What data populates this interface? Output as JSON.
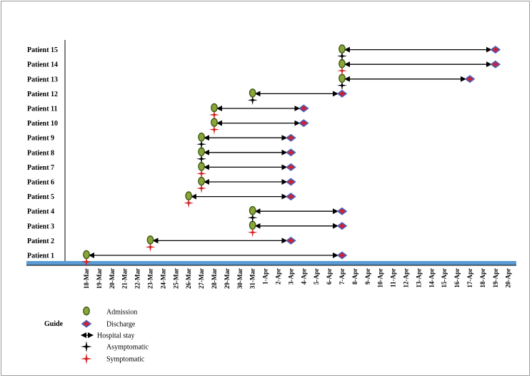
{
  "chart_data": {
    "type": "timeline",
    "title": "",
    "xlabel": "",
    "ylabel": "",
    "x_ticks": [
      "18-Mar",
      "19-Mar",
      "20-Mar",
      "21-Mar",
      "22-Mar",
      "23-Mar",
      "24-Mar",
      "25-Mar",
      "26-Mar",
      "27-Mar",
      "28-Mar",
      "29-Mar",
      "30-Mar",
      "31-Mar",
      "1-Apr",
      "2-Apr",
      "3-Apr",
      "4-Apr",
      "5-Apr",
      "6-Apr",
      "7-Apr",
      "8-Apr",
      "9-Apr",
      "10-Apr",
      "11-Apr",
      "12-Apr",
      "13-Apr",
      "14-Apr",
      "15-Apr",
      "16-Apr",
      "17-Apr",
      "18-Apr",
      "19-Apr",
      "20-Apr"
    ],
    "patients": [
      {
        "label": "Patient 1",
        "admission": "18-Mar",
        "discharge": "7-Apr",
        "status": "symptomatic"
      },
      {
        "label": "Patient 2",
        "admission": "23-Mar",
        "discharge": "3-Apr",
        "status": "symptomatic"
      },
      {
        "label": "Patient 3",
        "admission": "31-Mar",
        "discharge": "7-Apr",
        "status": "symptomatic"
      },
      {
        "label": "Patient 4",
        "admission": "31-Mar",
        "discharge": "7-Apr",
        "status": "asymptomatic"
      },
      {
        "label": "Patient 5",
        "admission": "26-Mar",
        "discharge": "3-Apr",
        "status": "symptomatic"
      },
      {
        "label": "Patient 6",
        "admission": "27-Mar",
        "discharge": "3-Apr",
        "status": "symptomatic"
      },
      {
        "label": "Patient 7",
        "admission": "27-Mar",
        "discharge": "3-Apr",
        "status": "symptomatic"
      },
      {
        "label": "Patient 8",
        "admission": "27-Mar",
        "discharge": "3-Apr",
        "status": "asymptomatic"
      },
      {
        "label": "Patient 9",
        "admission": "27-Mar",
        "discharge": "3-Apr",
        "status": "asymptomatic"
      },
      {
        "label": "Patient 10",
        "admission": "28-Mar",
        "discharge": "4-Apr",
        "status": "symptomatic"
      },
      {
        "label": "Patient 11",
        "admission": "28-Mar",
        "discharge": "4-Apr",
        "status": "symptomatic"
      },
      {
        "label": "Patient 12",
        "admission": "31-Mar",
        "discharge": "7-Apr",
        "status": "asymptomatic"
      },
      {
        "label": "Patient 13",
        "admission": "7-Apr",
        "discharge": "17-Apr",
        "status": "asymptomatic"
      },
      {
        "label": "Patient 14",
        "admission": "7-Apr",
        "discharge": "19-Apr",
        "status": "symptomatic"
      },
      {
        "label": "Patient 15",
        "admission": "7-Apr",
        "discharge": "19-Apr",
        "status": "asymptomatic"
      }
    ],
    "legend": {
      "title": "Guide",
      "items": [
        {
          "key": "admission",
          "label": "Admission"
        },
        {
          "key": "discharge",
          "label": "Discharge"
        },
        {
          "key": "stay",
          "label": "Hospital stay"
        },
        {
          "key": "asymptomatic",
          "label": "Asymptomatic"
        },
        {
          "key": "symptomatic",
          "label": "Symptomatic"
        }
      ]
    },
    "colors": {
      "admission_fill": "#8aa63a",
      "admission_edge": "#3f5a14",
      "discharge_fill": "#cc2233",
      "discharge_edge": "#4a5fb8",
      "symptomatic": "#d42020",
      "asymptomatic": "#000000",
      "baseline": "#5b9bd5",
      "arrow": "#000000"
    }
  }
}
